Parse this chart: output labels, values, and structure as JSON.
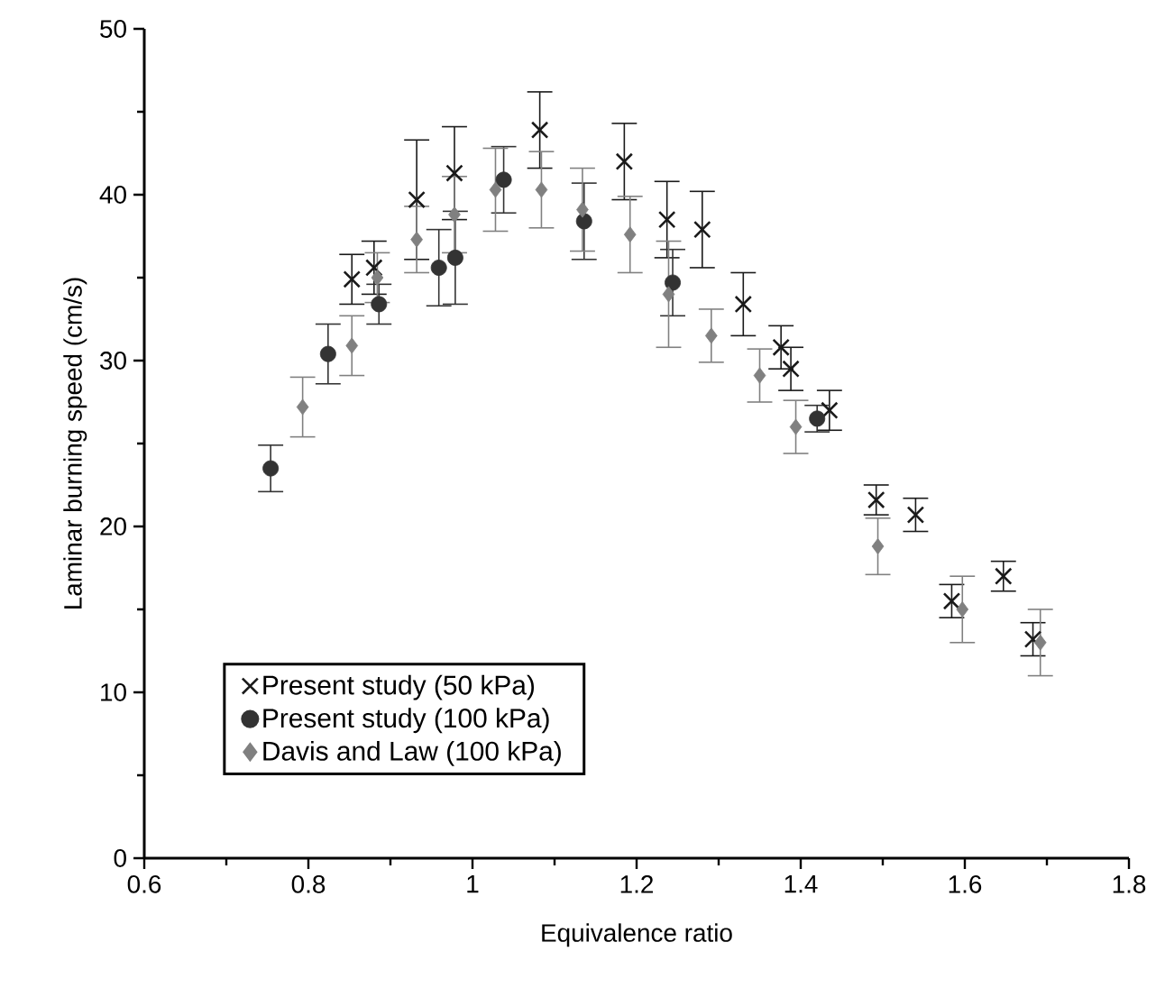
{
  "chart_data": {
    "type": "scatter",
    "xlabel": "Equivalence ratio",
    "ylabel": "Laminar burning speed (cm/s)",
    "xlim": [
      0.6,
      1.8
    ],
    "xticks": [
      0.6,
      0.8,
      1,
      1.2,
      1.4,
      1.6,
      1.8
    ],
    "ylim": [
      0,
      50
    ],
    "yticks": [
      0,
      10,
      20,
      30,
      40,
      50
    ],
    "grid": false,
    "legend": "bottom left",
    "series": [
      {
        "name": "Present study (50 kPa)",
        "color": "#1a1a1a",
        "marker": "cross",
        "x": [
          0.853,
          0.88,
          0.932,
          0.978,
          1.082,
          1.185,
          1.237,
          1.28,
          1.33,
          1.376,
          1.388,
          1.435,
          1.492,
          1.54,
          1.584,
          1.647,
          1.683
        ],
        "values": [
          34.9,
          35.6,
          39.7,
          41.3,
          43.9,
          42.0,
          38.5,
          37.9,
          33.4,
          30.8,
          29.5,
          27.0,
          21.6,
          20.7,
          15.5,
          17.0,
          13.2
        ],
        "errors": [
          1.5,
          1.6,
          3.6,
          2.8,
          2.3,
          2.3,
          2.3,
          2.3,
          1.9,
          1.3,
          1.3,
          1.2,
          0.9,
          1.0,
          1.0,
          0.9,
          1.0
        ]
      },
      {
        "name": "Present study (100 kPa)",
        "color": "#333333",
        "marker": "circle",
        "x": [
          0.754,
          0.824,
          0.886,
          0.959,
          0.979,
          1.038,
          1.136,
          1.244,
          1.42
        ],
        "values": [
          23.5,
          30.4,
          33.4,
          35.6,
          36.2,
          40.9,
          38.4,
          34.7,
          26.5
        ],
        "errors": [
          1.4,
          1.8,
          1.2,
          2.3,
          2.8,
          2.0,
          2.3,
          2.0,
          0.8
        ]
      },
      {
        "name": "Davis and Law (100 kPa)",
        "color": "#808080",
        "marker": "diamond",
        "x": [
          0.793,
          0.853,
          0.884,
          0.932,
          0.978,
          1.028,
          1.084,
          1.134,
          1.192,
          1.239,
          1.291,
          1.35,
          1.394,
          1.494,
          1.597,
          1.692
        ],
        "values": [
          27.2,
          30.9,
          35.0,
          37.3,
          38.8,
          40.3,
          40.3,
          39.1,
          37.6,
          34.0,
          31.5,
          29.1,
          26.0,
          18.8,
          15.0,
          13.0
        ],
        "errors": [
          1.8,
          1.8,
          1.5,
          2.0,
          2.3,
          2.5,
          2.3,
          2.5,
          2.3,
          3.2,
          1.6,
          1.6,
          1.6,
          1.7,
          2.0,
          2.0
        ]
      }
    ]
  }
}
